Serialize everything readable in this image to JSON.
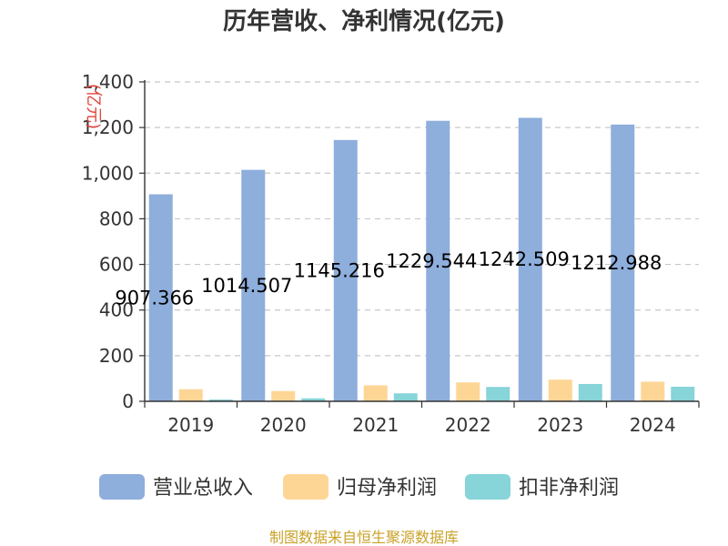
{
  "chart_data": {
    "type": "bar",
    "title": "历年营收、净利情况(亿元)",
    "unit_label": "(亿元)",
    "categories": [
      "2019",
      "2020",
      "2021",
      "2022",
      "2023",
      "2024"
    ],
    "series": [
      {
        "name": "营业总收入",
        "color": "#8eaedc",
        "values": [
          907.366,
          1014.507,
          1145.216,
          1229.544,
          1242.509,
          1212.988
        ]
      },
      {
        "name": "归母净利润",
        "color": "#fdd696",
        "values": [
          53,
          45,
          70,
          83,
          95,
          86
        ]
      },
      {
        "name": "扣非净利润",
        "color": "#87d4d9",
        "values": [
          8,
          13,
          35,
          63,
          76,
          64
        ]
      }
    ],
    "data_labels": [
      "907.366",
      "1014.507",
      "1145.216",
      "1229.544",
      "1242.509",
      "1212.988"
    ],
    "y_ticks": [
      "0",
      "200",
      "400",
      "600",
      "800",
      "1,000",
      "1,200",
      "1,400"
    ],
    "ylim": [
      0,
      1400
    ],
    "grid": true,
    "legend": "bottom"
  },
  "footer": {
    "source": "制图数据来自恒生聚源数据库"
  }
}
